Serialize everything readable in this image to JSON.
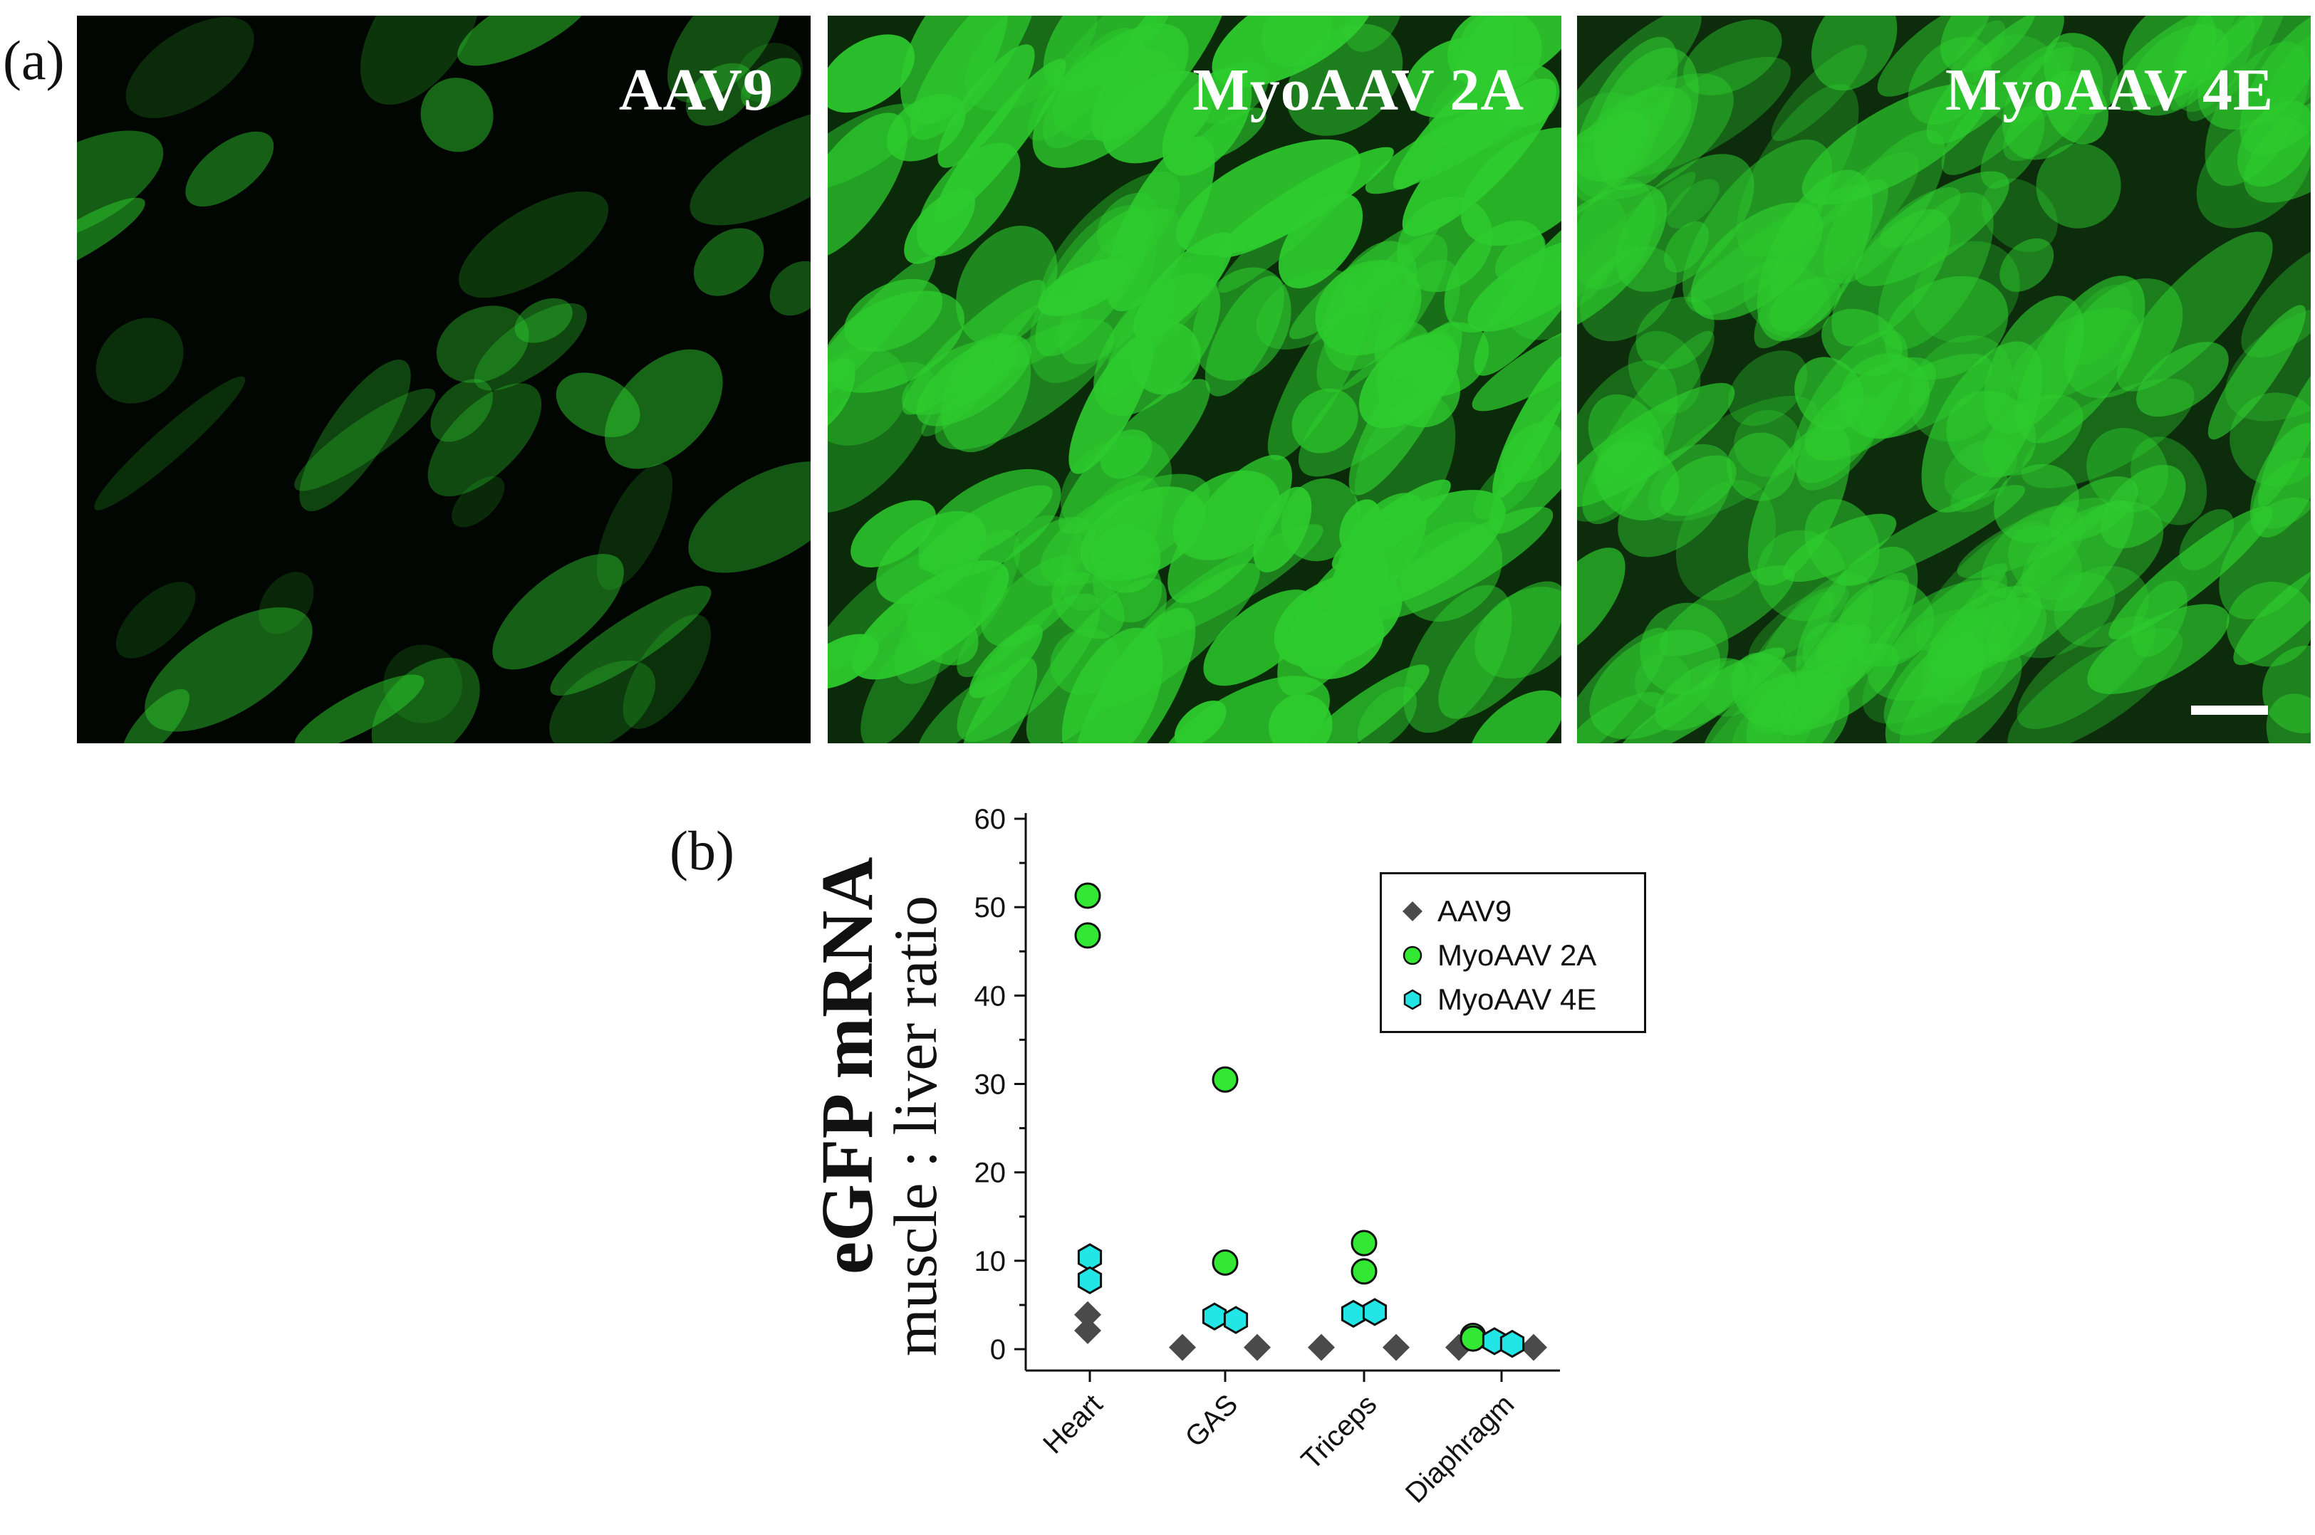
{
  "panel_labels": {
    "a": "(a)",
    "b": "(b)"
  },
  "micrographs": [
    {
      "title": "AAV9",
      "intensity": "low",
      "scale_bar": false
    },
    {
      "title": "MyoAAV 2A",
      "intensity": "high",
      "scale_bar": false
    },
    {
      "title": "MyoAAV 4E",
      "intensity": "medium",
      "scale_bar": true
    }
  ],
  "colors": {
    "fluorescence": "#2ecc2e",
    "aav9": "#4a4a4a",
    "myoaav2a": "#33e833",
    "myoaav4e": "#22e5e5"
  },
  "chart_data": {
    "type": "scatter",
    "ylabel_bold": "eGFP mRNA",
    "ylabel": "muscle : liver ratio",
    "ylim": [
      -2,
      60
    ],
    "yticks": [
      0,
      10,
      20,
      30,
      40,
      50,
      60
    ],
    "categories": [
      "Heart",
      "GAS",
      "Triceps",
      "Diaphragm"
    ],
    "legend_position": "top-right",
    "grid": false,
    "series": [
      {
        "name": "AAV9",
        "marker": "diamond",
        "color": "#4a4a4a",
        "points": [
          {
            "category": "Heart",
            "y": 3.9
          },
          {
            "category": "Heart",
            "y": 2.1
          },
          {
            "category": "GAS",
            "y": 0.2
          },
          {
            "category": "GAS",
            "y": 0.2
          },
          {
            "category": "Triceps",
            "y": 0.2
          },
          {
            "category": "Triceps",
            "y": 0.2
          },
          {
            "category": "Diaphragm",
            "y": 0.2
          },
          {
            "category": "Diaphragm",
            "y": 0.2
          }
        ]
      },
      {
        "name": "MyoAAV 2A",
        "marker": "circle",
        "color": "#33e833",
        "points": [
          {
            "category": "Heart",
            "y": 51.3
          },
          {
            "category": "Heart",
            "y": 46.8
          },
          {
            "category": "GAS",
            "y": 30.5
          },
          {
            "category": "GAS",
            "y": 9.8
          },
          {
            "category": "Triceps",
            "y": 12.0
          },
          {
            "category": "Triceps",
            "y": 8.8
          },
          {
            "category": "Diaphragm",
            "y": 1.5
          },
          {
            "category": "Diaphragm",
            "y": 1.2
          }
        ]
      },
      {
        "name": "MyoAAV 4E",
        "marker": "hexagon",
        "color": "#22e5e5",
        "points": [
          {
            "category": "Heart",
            "y": 10.4
          },
          {
            "category": "Heart",
            "y": 7.8
          },
          {
            "category": "GAS",
            "y": 3.7
          },
          {
            "category": "GAS",
            "y": 3.3
          },
          {
            "category": "Triceps",
            "y": 4.0
          },
          {
            "category": "Triceps",
            "y": 4.2
          },
          {
            "category": "Diaphragm",
            "y": 0.9
          },
          {
            "category": "Diaphragm",
            "y": 0.6
          }
        ]
      }
    ]
  }
}
